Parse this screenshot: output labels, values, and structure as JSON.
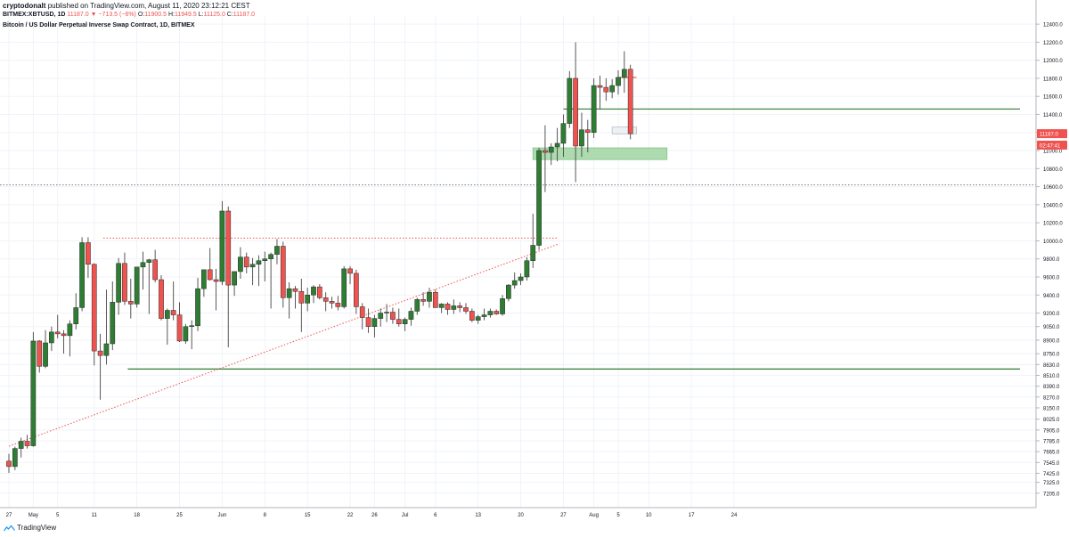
{
  "header": {
    "author": "cryptodonalt",
    "published_text": "published on TradingView.com, August 11, 2020 23:12:21 CEST",
    "symbol": "BITMEX:XBTUSD, 1D",
    "last": "11187.0",
    "change_arrow": "▼",
    "change": "−713.5 (−6%)",
    "o_label": "O:",
    "o_value": "11900.5",
    "h_label": "H:",
    "h_value": "11949.5",
    "l_label": "L:",
    "l_value": "11125.0",
    "c_label": "C:",
    "c_value": "11187.0"
  },
  "footer": {
    "brand": "TradingView"
  },
  "colors": {
    "up": "#2e7d32",
    "down": "#ef5350",
    "grid": "#f0f3fa",
    "axis": "#b2b5be"
  },
  "chart_data": {
    "type": "candlestick",
    "title": "Bitcoin / US Dollar Perpetual Inverse Swap Contract, 1D, BITMEX",
    "ylim": [
      7045,
      12490
    ],
    "y_ticks": [
      12400.0,
      12200.0,
      12000.0,
      11800.0,
      11600.0,
      11400.0,
      11200.0,
      11000.0,
      10800.0,
      10600.0,
      10400.0,
      10200.0,
      10000.0,
      9800.0,
      9600.0,
      9400.0,
      9200.0,
      9050.0,
      8900.0,
      8750.0,
      8630.0,
      8510.0,
      8390.0,
      8270.0,
      8150.0,
      8025.0,
      7905.0,
      7785.0,
      7665.0,
      7545.0,
      7425.0,
      7325.0,
      7205.0
    ],
    "x_ticks": [
      {
        "label": "27",
        "day": 0
      },
      {
        "label": "May",
        "day": 4
      },
      {
        "label": "5",
        "day": 8
      },
      {
        "label": "11",
        "day": 14
      },
      {
        "label": "18",
        "day": 21
      },
      {
        "label": "25",
        "day": 28
      },
      {
        "label": "Jun",
        "day": 35
      },
      {
        "label": "8",
        "day": 42
      },
      {
        "label": "15",
        "day": 49
      },
      {
        "label": "22",
        "day": 56
      },
      {
        "label": "26",
        "day": 60
      },
      {
        "label": "Jul",
        "day": 65
      },
      {
        "label": "6",
        "day": 70
      },
      {
        "label": "13",
        "day": 77
      },
      {
        "label": "20",
        "day": 84
      },
      {
        "label": "27",
        "day": 91
      },
      {
        "label": "Aug",
        "day": 96
      },
      {
        "label": "5",
        "day": 100
      },
      {
        "label": "10",
        "day": 105
      },
      {
        "label": "17",
        "day": 112
      },
      {
        "label": "24",
        "day": 119
      }
    ],
    "first_day": 0,
    "candles": [
      [
        7560,
        7640,
        7430,
        7500
      ],
      [
        7500,
        7720,
        7460,
        7700
      ],
      [
        7700,
        7820,
        7600,
        7780
      ],
      [
        7780,
        7850,
        7700,
        7730
      ],
      [
        7730,
        8990,
        7720,
        8890
      ],
      [
        8890,
        8900,
        8540,
        8610
      ],
      [
        8610,
        9010,
        8590,
        8870
      ],
      [
        8870,
        9050,
        8780,
        8990
      ],
      [
        8990,
        9180,
        8920,
        8970
      ],
      [
        8970,
        9010,
        8750,
        8950
      ],
      [
        8950,
        9120,
        8720,
        9080
      ],
      [
        9080,
        9420,
        9020,
        9260
      ],
      [
        9260,
        10040,
        9220,
        9980
      ],
      [
        9980,
        10040,
        9590,
        9740
      ],
      [
        9740,
        9750,
        8620,
        8780
      ],
      [
        8780,
        8970,
        8240,
        8730
      ],
      [
        8730,
        9460,
        8630,
        8860
      ],
      [
        8860,
        9550,
        8790,
        9320
      ],
      [
        9320,
        9810,
        9180,
        9750
      ],
      [
        9750,
        9870,
        9290,
        9330
      ],
      [
        9330,
        9580,
        9140,
        9300
      ],
      [
        9300,
        9660,
        9260,
        9710
      ],
      [
        9710,
        9880,
        9460,
        9760
      ],
      [
        9760,
        9800,
        9190,
        9790
      ],
      [
        9790,
        9900,
        9540,
        9570
      ],
      [
        9570,
        9620,
        9120,
        9140
      ],
      [
        9140,
        9250,
        8850,
        9230
      ],
      [
        9230,
        9550,
        9120,
        9180
      ],
      [
        9180,
        9320,
        8880,
        8890
      ],
      [
        8890,
        9080,
        8860,
        9050
      ],
      [
        9050,
        9120,
        8800,
        9060
      ],
      [
        9060,
        9590,
        9000,
        9470
      ],
      [
        9470,
        9680,
        9380,
        9680
      ],
      [
        9680,
        9920,
        9560,
        9570
      ],
      [
        9570,
        9690,
        9230,
        9550
      ],
      [
        9550,
        10440,
        9510,
        10330
      ],
      [
        10330,
        10380,
        8820,
        9510
      ],
      [
        9510,
        9660,
        9390,
        9660
      ],
      [
        9660,
        9930,
        9580,
        9820
      ],
      [
        9820,
        9870,
        9640,
        9710
      ],
      [
        9710,
        9810,
        9510,
        9740
      ],
      [
        9740,
        9840,
        9500,
        9780
      ],
      [
        9780,
        9880,
        9550,
        9800
      ],
      [
        9800,
        9870,
        9250,
        9850
      ],
      [
        9850,
        10020,
        9740,
        9940
      ],
      [
        9940,
        9990,
        9260,
        9370
      ],
      [
        9370,
        9540,
        9140,
        9470
      ],
      [
        9470,
        9500,
        9250,
        9440
      ],
      [
        9440,
        9580,
        8990,
        9310
      ],
      [
        9310,
        9480,
        9220,
        9400
      ],
      [
        9400,
        9510,
        9310,
        9490
      ],
      [
        9490,
        9520,
        9350,
        9370
      ],
      [
        9370,
        9430,
        9220,
        9330
      ],
      [
        9330,
        9380,
        9250,
        9310
      ],
      [
        9310,
        9390,
        9230,
        9270
      ],
      [
        9270,
        9720,
        9250,
        9690
      ],
      [
        9690,
        9720,
        9520,
        9640
      ],
      [
        9640,
        9680,
        9190,
        9270
      ],
      [
        9270,
        9310,
        9020,
        9150
      ],
      [
        9150,
        9250,
        8980,
        9050
      ],
      [
        9050,
        9180,
        8930,
        9140
      ],
      [
        9140,
        9250,
        9050,
        9200
      ],
      [
        9200,
        9300,
        9100,
        9210
      ],
      [
        9210,
        9260,
        9080,
        9130
      ],
      [
        9130,
        9250,
        9050,
        9080
      ],
      [
        9080,
        9150,
        9000,
        9130
      ],
      [
        9130,
        9260,
        9060,
        9220
      ],
      [
        9220,
        9370,
        9180,
        9350
      ],
      [
        9350,
        9430,
        9280,
        9330
      ],
      [
        9330,
        9480,
        9260,
        9430
      ],
      [
        9430,
        9460,
        9260,
        9260
      ],
      [
        9260,
        9310,
        9200,
        9300
      ],
      [
        9300,
        9320,
        9180,
        9240
      ],
      [
        9240,
        9350,
        9190,
        9280
      ],
      [
        9280,
        9320,
        9210,
        9260
      ],
      [
        9260,
        9310,
        9190,
        9220
      ],
      [
        9220,
        9250,
        9100,
        9120
      ],
      [
        9120,
        9180,
        9080,
        9160
      ],
      [
        9160,
        9250,
        9120,
        9180
      ],
      [
        9180,
        9250,
        9150,
        9220
      ],
      [
        9220,
        9240,
        9180,
        9190
      ],
      [
        9190,
        9400,
        9170,
        9360
      ],
      [
        9360,
        9520,
        9330,
        9510
      ],
      [
        9510,
        9650,
        9470,
        9560
      ],
      [
        9560,
        9640,
        9510,
        9600
      ],
      [
        9600,
        9820,
        9560,
        9780
      ],
      [
        9780,
        10300,
        9700,
        9950
      ],
      [
        9950,
        11030,
        9900,
        11000
      ],
      [
        11000,
        11280,
        10540,
        10980
      ],
      [
        10980,
        11080,
        10840,
        11040
      ],
      [
        11040,
        11250,
        10880,
        11080
      ],
      [
        11080,
        11400,
        10930,
        11300
      ],
      [
        11300,
        11880,
        11250,
        11800
      ],
      [
        11800,
        12200,
        10650,
        11050
      ],
      [
        11050,
        11420,
        10930,
        11230
      ],
      [
        11230,
        11340,
        10980,
        11200
      ],
      [
        11200,
        11800,
        11140,
        11720
      ],
      [
        11720,
        11830,
        11460,
        11700
      ],
      [
        11700,
        11800,
        11550,
        11650
      ],
      [
        11650,
        11790,
        11580,
        11720
      ],
      [
        11720,
        11890,
        11620,
        11810
      ],
      [
        11810,
        12100,
        11640,
        11900
      ],
      [
        11900,
        11950,
        11125,
        11187
      ]
    ],
    "levels": [
      {
        "type": "horizontal-dotted",
        "value": 10620,
        "color": "#787b86"
      },
      {
        "type": "horizontal-dotted",
        "value": 10030,
        "color": "#ef5350"
      },
      {
        "type": "horizontal",
        "value": 8580,
        "color": "#2e7d32"
      },
      {
        "type": "horizontal",
        "value": 11460,
        "color": "#2e7d32"
      },
      {
        "type": "horizontal",
        "value": 11810,
        "color": "#ef5350"
      }
    ],
    "zones": [
      {
        "value_from": 10900,
        "value_to": 11030,
        "color": "#a5d6a7"
      },
      {
        "value_from": 11185,
        "value_to": 11260,
        "color": "#eceff1"
      }
    ],
    "trendline": {
      "from": [
        7725,
        0
      ],
      "to": [
        9960,
        90
      ],
      "color": "#ef5350"
    },
    "price_labels": [
      {
        "value": 11187,
        "text": "11187.0",
        "color": "#ef5350"
      },
      {
        "value": 11060,
        "text": "02:47:41",
        "color": "#ef5350"
      }
    ]
  }
}
